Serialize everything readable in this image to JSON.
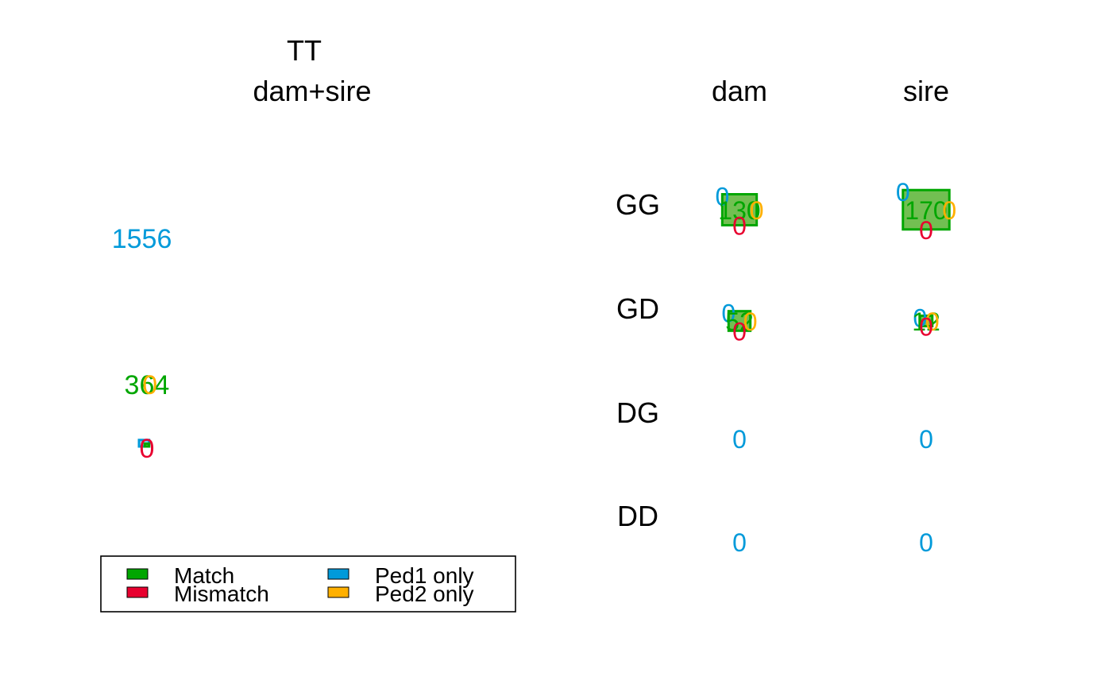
{
  "colors": {
    "match": "#00A600",
    "match_fill": "#72BF52",
    "mismatch": "#E8002F",
    "ped1": "#009ADA",
    "ped1_fill": "#9CD8F3",
    "ped2": "#FFB000",
    "legend_match": "#00A600",
    "legend_mismatch": "#E8002F",
    "legend_ped1": "#009ADA",
    "legend_ped2": "#FFB000"
  },
  "chart_data": [
    {
      "type": "proportional-area",
      "title": "TT",
      "subtitle": "dam+sire",
      "values": {
        "ped1_only": 1556,
        "match": 364,
        "ped2_only": 0,
        "mismatch": 0
      }
    },
    {
      "type": "proportional-area-grid",
      "columns": [
        "dam",
        "sire"
      ],
      "rows": [
        "GG",
        "GD",
        "DG",
        "DD"
      ],
      "cells": [
        {
          "row": "GG",
          "col": "dam",
          "ped1_only": 0,
          "match": 130,
          "ped2_only": 0,
          "mismatch": 0
        },
        {
          "row": "GG",
          "col": "sire",
          "ped1_only": 0,
          "match": 170,
          "ped2_only": 0,
          "mismatch": 0
        },
        {
          "row": "GD",
          "col": "dam",
          "ped1_only": 0,
          "match": 52,
          "ped2_only": 0,
          "mismatch": 0
        },
        {
          "row": "GD",
          "col": "sire",
          "ped1_only": 0,
          "match": 12,
          "ped2_only": 0,
          "mismatch": 0
        },
        {
          "row": "DG",
          "col": "dam",
          "ped1_only": 0
        },
        {
          "row": "DG",
          "col": "sire",
          "ped1_only": 0
        },
        {
          "row": "DD",
          "col": "dam",
          "ped1_only": 0
        },
        {
          "row": "DD",
          "col": "sire",
          "ped1_only": 0
        }
      ]
    }
  ],
  "legend": {
    "items": [
      {
        "key": "legend_match",
        "label": "Match"
      },
      {
        "key": "legend_mismatch",
        "label": "Mismatch"
      },
      {
        "key": "legend_ped1",
        "label": "Ped1 only"
      },
      {
        "key": "legend_ped2",
        "label": "Ped2 only"
      }
    ]
  }
}
